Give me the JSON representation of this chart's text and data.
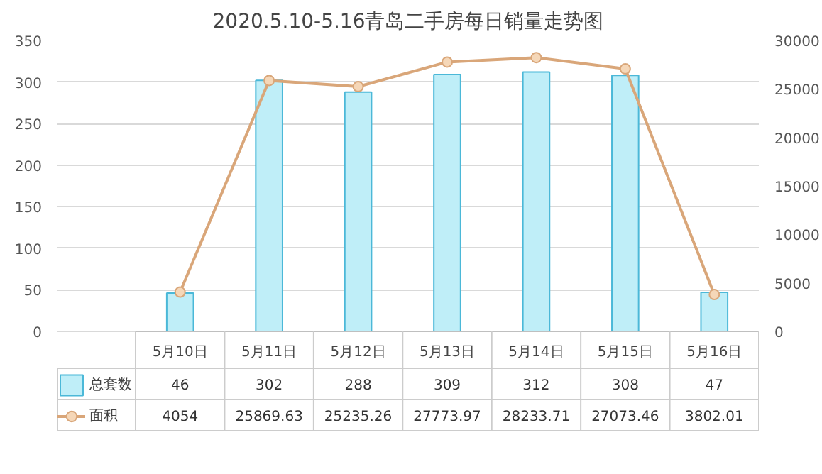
{
  "chart_data": {
    "type": "bar",
    "title": "2020.5.10-5.16青岛二手房每日销量走势图",
    "categories": [
      "5月10日",
      "5月11日",
      "5月12日",
      "5月13日",
      "5月14日",
      "5月15日",
      "5月16日"
    ],
    "series": [
      {
        "name": "总套数",
        "color": "#bfeef8",
        "values": [
          46,
          302,
          288,
          309,
          312,
          308,
          47
        ]
      },
      {
        "name": "面积",
        "type": "line",
        "axis": "y2",
        "color": "#d9a679",
        "values": [
          4054,
          25869.63,
          25235.26,
          27773.97,
          28233.71,
          27073.46,
          3802.01
        ]
      }
    ],
    "ylim": [
      0,
      350
    ],
    "yticks": [
      0,
      50,
      100,
      150,
      200,
      250,
      300,
      350
    ],
    "y2lim": [
      0,
      30000
    ],
    "y2ticks": [
      0,
      5000,
      10000,
      15000,
      20000,
      25000,
      30000
    ],
    "grid": "y",
    "legend": "bottom",
    "marker": "circle",
    "data_labels": true
  }
}
